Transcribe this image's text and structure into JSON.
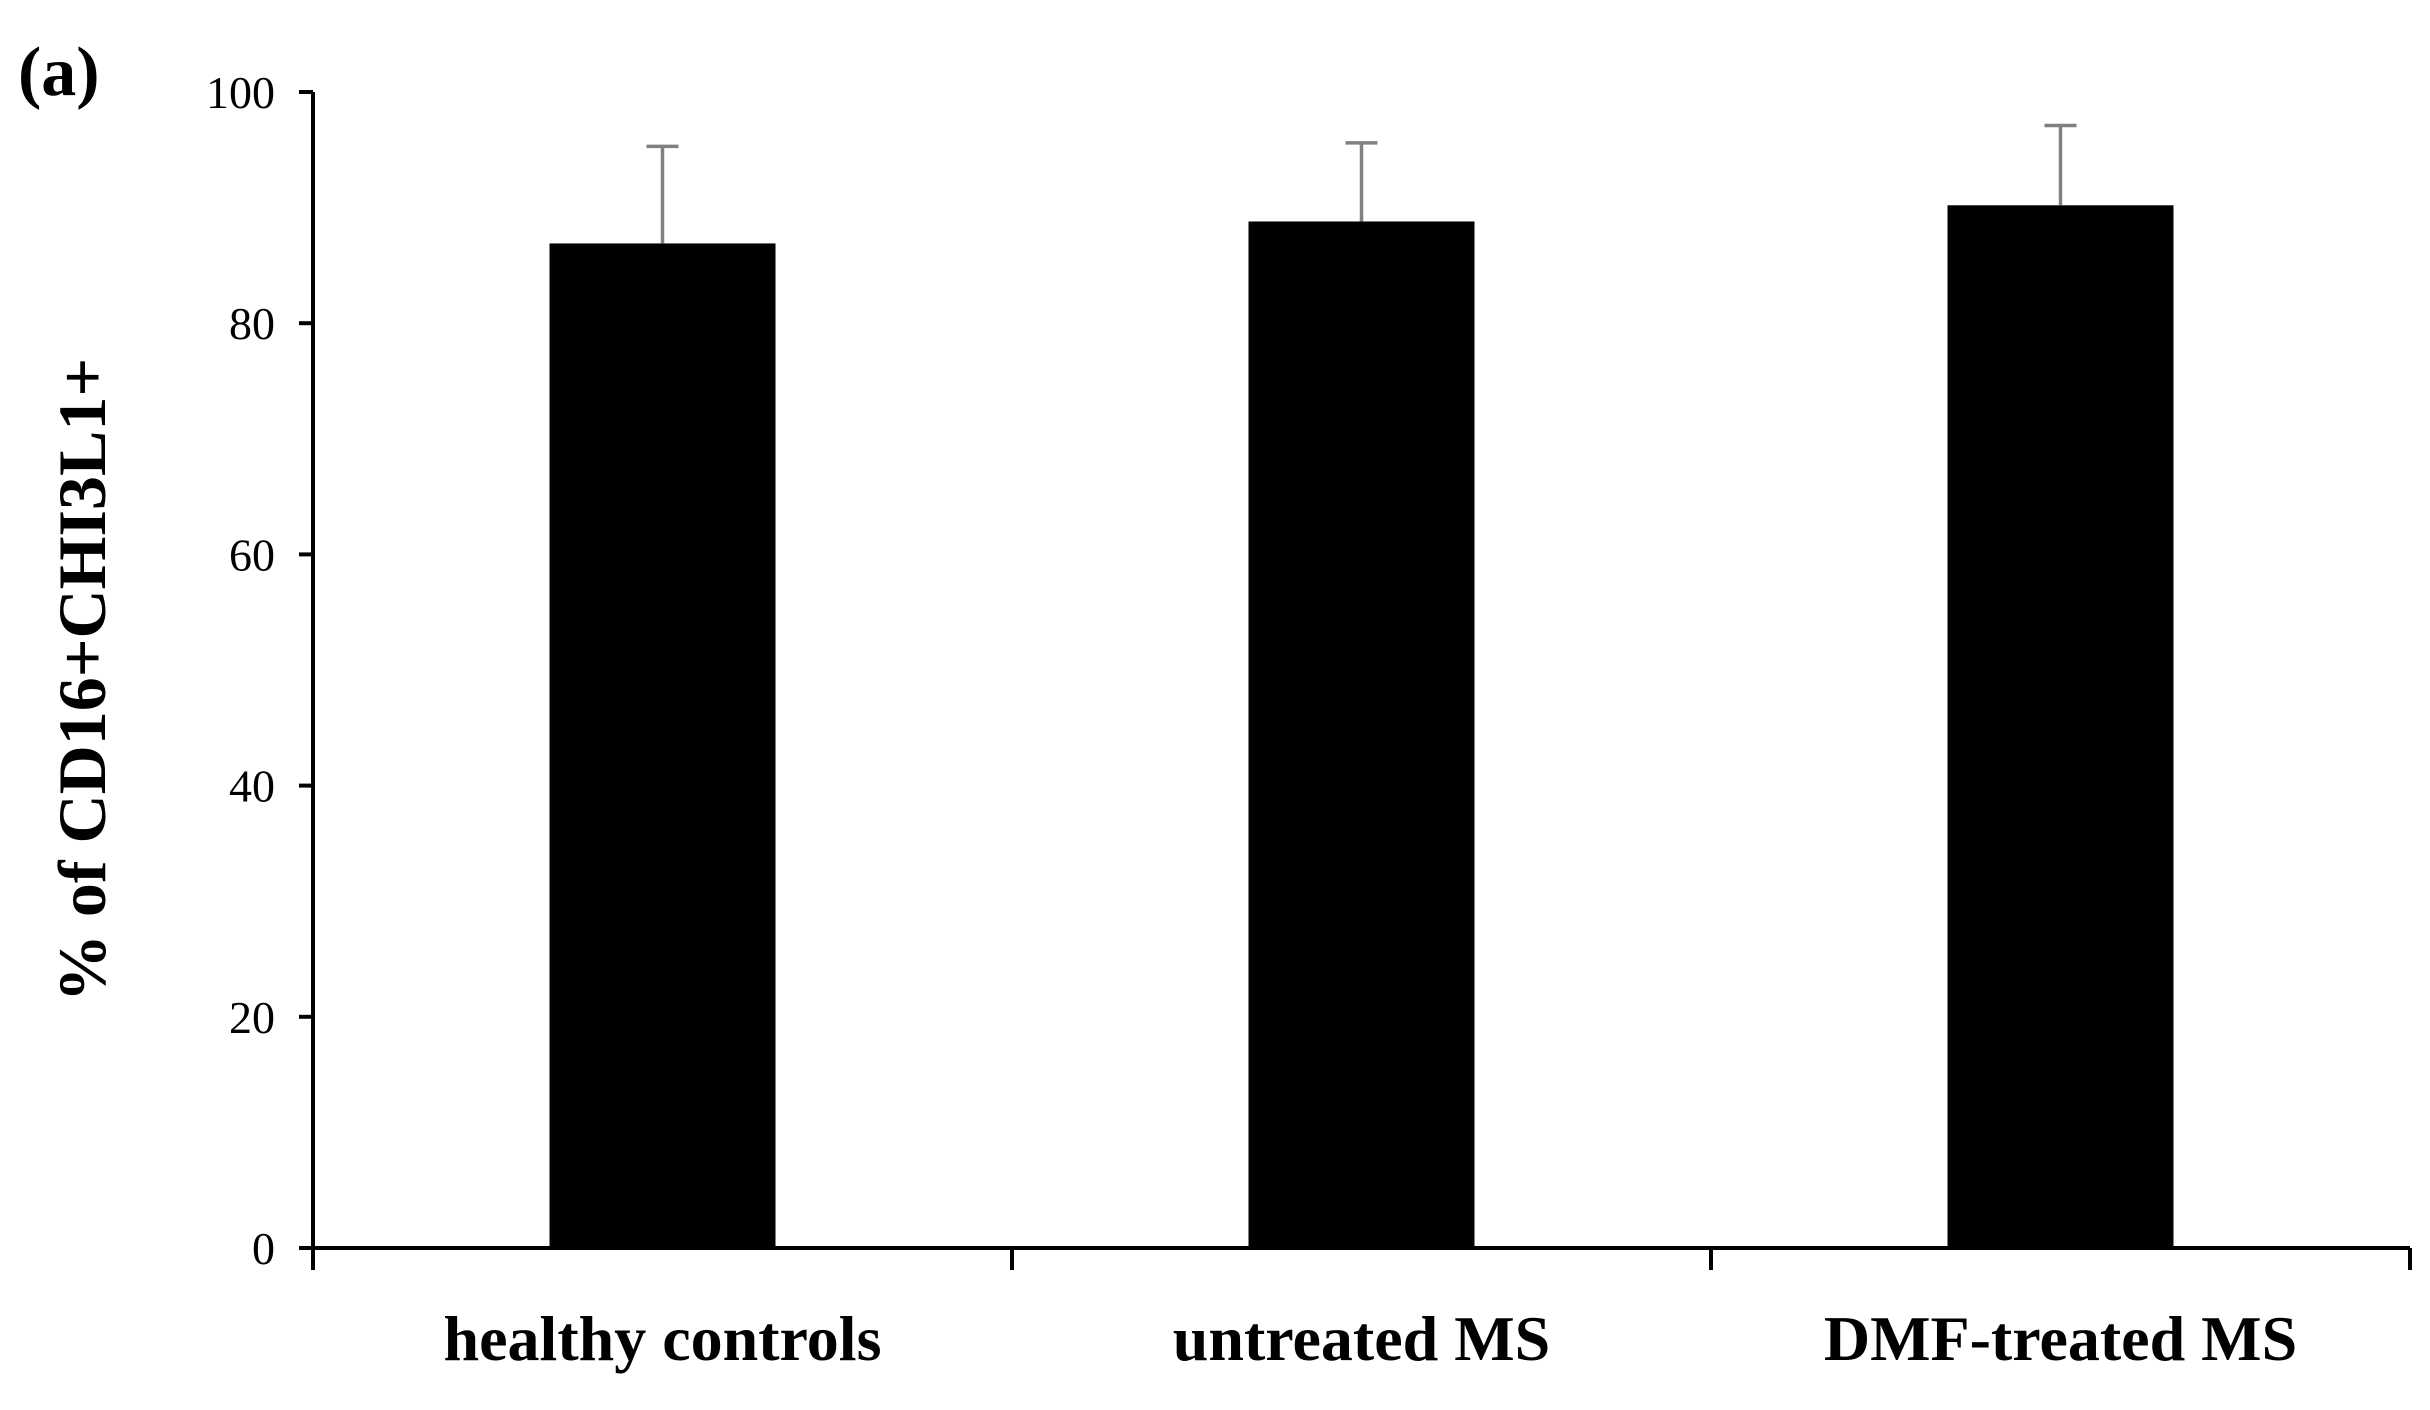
{
  "panel_label": "(a)",
  "colors": {
    "bar": "#000000",
    "error_bar": "#808080",
    "axis": "#000000"
  },
  "chart_data": {
    "type": "bar",
    "categories": [
      "healthy controls",
      "untreated MS",
      "DMF-treated MS"
    ],
    "values": [
      86.9,
      88.8,
      90.2
    ],
    "error_upper": [
      95.3,
      95.6,
      97.1
    ],
    "ylabel": "% of CD16+CHI3L1+",
    "xlabel": "",
    "ylim": [
      0,
      100
    ],
    "yticks": [
      0,
      20,
      40,
      60,
      80,
      100
    ],
    "grid": false,
    "legend": "none"
  }
}
